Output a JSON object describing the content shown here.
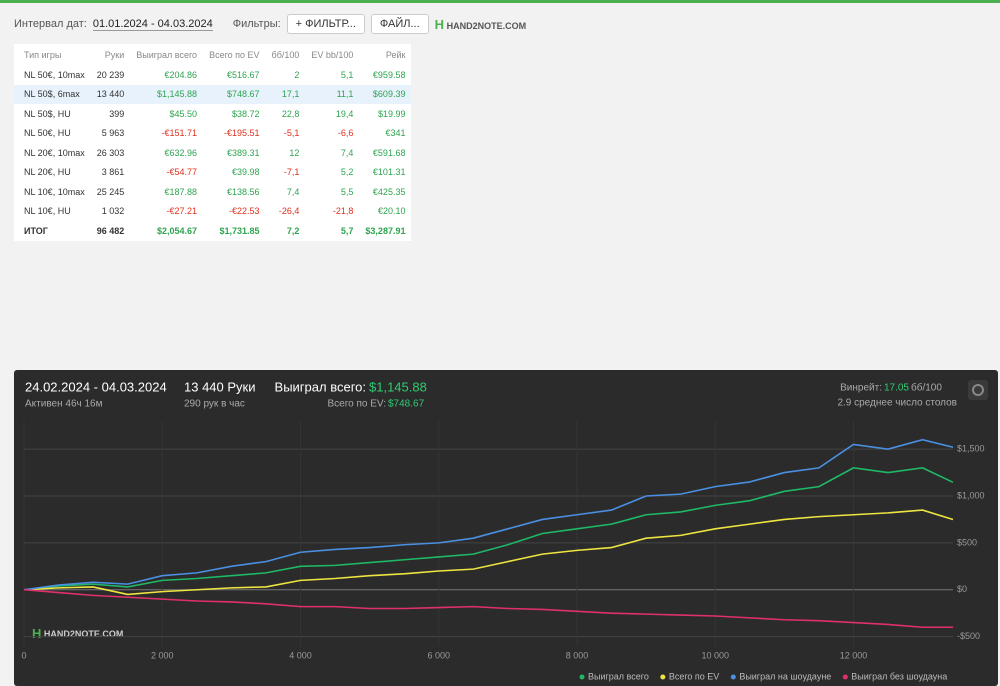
{
  "toolbar": {
    "date_label": "Интервал дат:",
    "date_range": "01.01.2024 - 04.03.2024",
    "filters_label": "Фильтры:",
    "filter_button": "ФИЛЬТР...",
    "file_button": "ФАЙЛ...",
    "logo": "HAND2NOTE.COM"
  },
  "table": {
    "header": [
      "Тип игры",
      "Руки",
      "Выиграл всего",
      "Всего по EV",
      "бб/100",
      "EV bb/100",
      "Рейк"
    ],
    "rows": [
      [
        "NL 50€, 10max",
        "20 239",
        "€204.86",
        "€516.67",
        "2",
        "5,1",
        "€959.58"
      ],
      [
        "NL 50$, 6max",
        "13 440",
        "$1,145.88",
        "$748.67",
        "17,1",
        "11,1",
        "$609.39"
      ],
      [
        "NL 50$, HU",
        "399",
        "$45.50",
        "$38.72",
        "22,8",
        "19,4",
        "$19.99"
      ],
      [
        "NL 50€, HU",
        "5 963",
        "-€151.71",
        "-€195.51",
        "-5,1",
        "-6,6",
        "€341"
      ],
      [
        "NL 20€, 10max",
        "26 303",
        "€632.96",
        "€389.31",
        "12",
        "7,4",
        "€591.68"
      ],
      [
        "NL 20€, HU",
        "3 861",
        "-€54.77",
        "€39.98",
        "-7,1",
        "5,2",
        "€101.31"
      ],
      [
        "NL 10€, 10max",
        "25 245",
        "€187.88",
        "€138.56",
        "7,4",
        "5,5",
        "€425.35"
      ],
      [
        "NL 10€, HU",
        "1 032",
        "-€27.21",
        "-€22.53",
        "-26,4",
        "-21,8",
        "€20.10"
      ]
    ],
    "total": [
      "ИТОГ",
      "96 482",
      "$2,054.67",
      "$1,731.85",
      "7,2",
      "5,7",
      "$3,287.91"
    ]
  },
  "panel": {
    "period": "24.02.2024 - 04.03.2024",
    "active": "Активен 46ч 16м",
    "hands": "13 440 Руки",
    "per_hour": "290 рук в час",
    "won_label": "Выиграл всего:",
    "won_value": "$1,145.88",
    "ev_label": "Всего по EV:",
    "ev_value": "$748.67",
    "winrate_label": "Винрейт:",
    "winrate_value": "17.05",
    "winrate_unit": "бб/100",
    "tables": "2.9 среднее число столов",
    "watermark": "HAND2NOTE.COM"
  },
  "chart_data": {
    "type": "line",
    "x": [
      0,
      500,
      1000,
      1500,
      2000,
      2500,
      3000,
      3500,
      4000,
      4500,
      5000,
      5500,
      6000,
      6500,
      7000,
      7500,
      8000,
      8500,
      9000,
      9500,
      10000,
      10500,
      11000,
      11500,
      12000,
      12500,
      13000,
      13440
    ],
    "series": [
      {
        "name": "Выиграл всего",
        "color": "#1fb866",
        "values": [
          0,
          40,
          60,
          30,
          100,
          120,
          150,
          180,
          250,
          260,
          290,
          320,
          350,
          380,
          480,
          600,
          650,
          700,
          800,
          830,
          900,
          950,
          1050,
          1100,
          1300,
          1250,
          1300,
          1146
        ]
      },
      {
        "name": "Всего по EV",
        "color": "#efe541",
        "values": [
          0,
          20,
          30,
          -50,
          -20,
          0,
          20,
          30,
          100,
          120,
          150,
          170,
          200,
          220,
          300,
          380,
          420,
          450,
          550,
          580,
          650,
          700,
          750,
          780,
          800,
          820,
          850,
          749
        ]
      },
      {
        "name": "Выиграл на шоудауне",
        "color": "#4a90e2",
        "values": [
          0,
          50,
          80,
          60,
          150,
          180,
          250,
          300,
          400,
          430,
          450,
          480,
          500,
          550,
          650,
          750,
          800,
          850,
          1000,
          1020,
          1100,
          1150,
          1250,
          1300,
          1550,
          1500,
          1600,
          1520
        ]
      },
      {
        "name": "Выиграл без шоудауна",
        "color": "#e0306a",
        "values": [
          0,
          -30,
          -60,
          -80,
          -100,
          -120,
          -130,
          -150,
          -180,
          -180,
          -200,
          -200,
          -190,
          -180,
          -200,
          -210,
          -230,
          -250,
          -260,
          -270,
          -280,
          -300,
          -320,
          -330,
          -350,
          -370,
          -400,
          -400
        ]
      }
    ],
    "xlim": [
      0,
      13440
    ],
    "xticks": [
      0,
      {
        "value": 2000,
        "label": "2 000"
      },
      {
        "value": 4000,
        "label": "4 000"
      },
      {
        "value": 6000,
        "label": "6 000"
      },
      {
        "value": 8000,
        "label": "8 000"
      },
      {
        "value": 10000,
        "label": "10 000"
      },
      {
        "value": 12000,
        "label": "12 000"
      }
    ],
    "ylim": [
      -600,
      1800
    ],
    "yticks": [
      {
        "value": -500,
        "label": "-$500"
      },
      {
        "value": 0,
        "label": "$0"
      },
      {
        "value": 500,
        "label": "$500"
      },
      {
        "value": 1000,
        "label": "$1,000"
      },
      {
        "value": 1500,
        "label": "$1,500"
      }
    ],
    "grid": true
  }
}
